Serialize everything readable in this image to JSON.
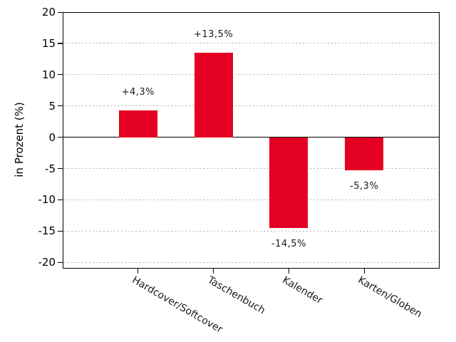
{
  "chart_data": {
    "type": "bar",
    "title": "",
    "categories": [
      "Hardcover/Softcover",
      "Taschenbuch",
      "Kalender",
      "Karten/Globen"
    ],
    "values": [
      4.3,
      13.5,
      -14.5,
      -5.3
    ],
    "value_labels": [
      "+4,3%",
      "+13,5%",
      "-14,5%",
      "-5,3%"
    ],
    "xlabel": "",
    "ylabel": "in Prozent (%)",
    "yticks": [
      20,
      15,
      10,
      5,
      0,
      -5,
      -10,
      -15,
      -20
    ],
    "ylim": [
      -21,
      20
    ],
    "grid": "horizontal-dotted",
    "legend": "none",
    "bar_color": "#e30022",
    "grid_color": "#b5b5b5",
    "axis_color": "#000000"
  }
}
